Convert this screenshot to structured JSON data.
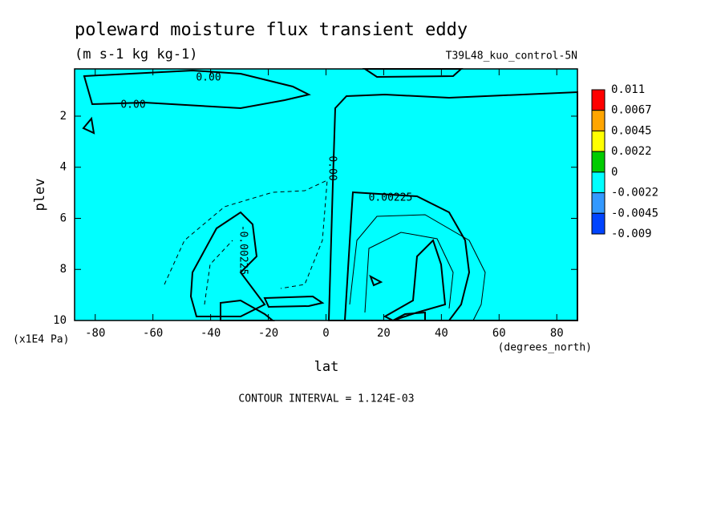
{
  "chart_data": {
    "type": "contour",
    "title": "poleward moisture flux transient eddy",
    "units": "(m s-1 kg kg-1)",
    "dataset": "T39L48_kuo_control-5N",
    "x_label": "lat",
    "x_units": "(degrees_north)",
    "y_label": "plev",
    "y_units": "(x1E4 Pa)",
    "footer": "CONTOUR INTERVAL = 1.124E-03",
    "xlim": [
      -87.16,
      87.16
    ],
    "xticks": [
      -80,
      -60,
      -40,
      -20,
      0,
      20,
      40,
      60,
      80
    ],
    "ylim": [
      0.15,
      10
    ],
    "yticks": [
      2,
      4,
      6,
      8,
      10
    ],
    "y_reversed": true,
    "levels": [
      0.011,
      0.0067,
      0.0045,
      0.0022,
      0,
      -0.0022,
      -0.0045,
      -0.009
    ],
    "colors": [
      "#ff0000",
      "#ffa500",
      "#ffff00",
      "#00cc00",
      "#00ffff",
      "#3399ff",
      "#0044ff"
    ],
    "contour_labels": [
      "0.00",
      "0.00",
      "0.00",
      "0.00225",
      "-0.00225"
    ]
  }
}
